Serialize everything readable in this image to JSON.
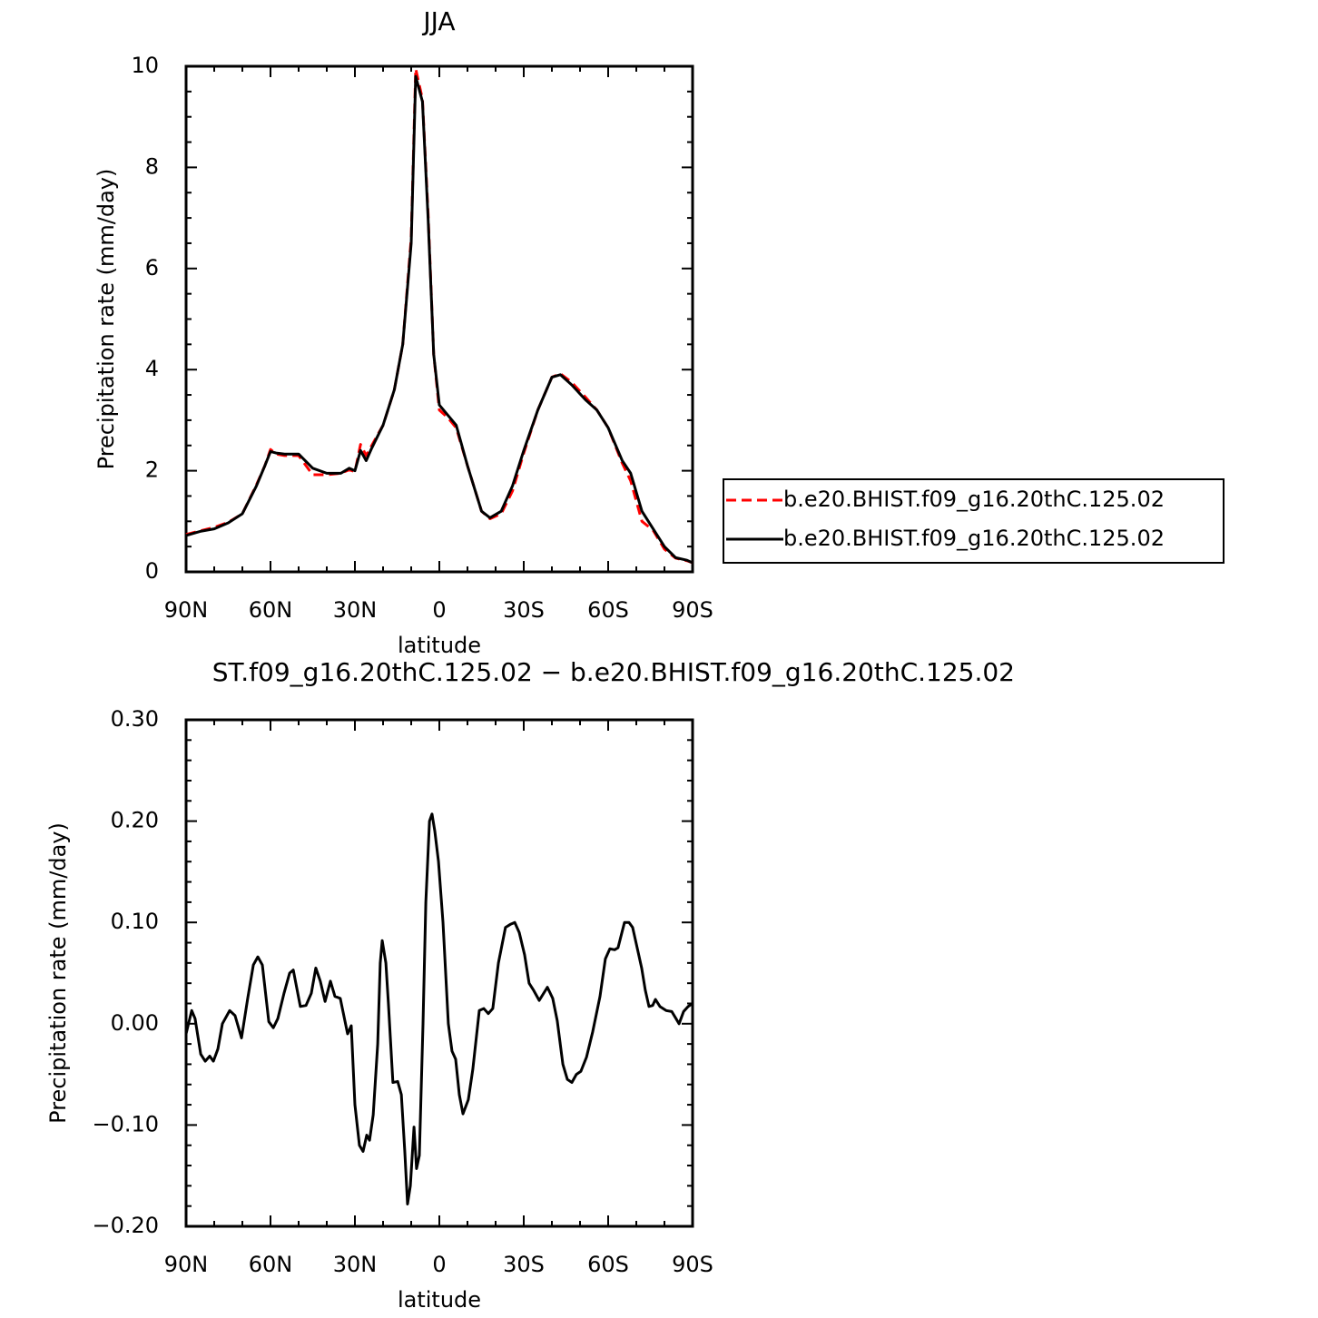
{
  "chart_data": [
    {
      "type": "line",
      "title": "JJA",
      "xlabel": "latitude",
      "ylabel": "Precipitation rate (mm/day)",
      "xlim": [
        90,
        -90
      ],
      "ylim": [
        0,
        10
      ],
      "xticks": [
        {
          "value": 90,
          "label": "90N"
        },
        {
          "value": 60,
          "label": "60N"
        },
        {
          "value": 30,
          "label": "30N"
        },
        0,
        {
          "value": -30,
          "label": "30S"
        },
        {
          "value": -60,
          "label": "60S"
        },
        {
          "value": -90,
          "label": "90S"
        }
      ],
      "yticks": [
        0,
        2,
        4,
        6,
        8,
        10
      ],
      "legend": "right",
      "x": [
        90,
        85,
        80,
        75,
        70,
        65,
        62,
        60,
        58,
        55,
        50,
        45,
        40,
        35,
        32,
        30,
        28,
        26,
        24,
        20,
        16,
        13,
        10,
        8.4,
        6,
        4,
        2,
        0,
        -3,
        -6,
        -10,
        -15,
        -18,
        -22,
        -26,
        -30,
        -35,
        -40,
        -43,
        -47,
        -52,
        -56,
        -60,
        -65,
        -68,
        -72,
        -76,
        -80,
        -84,
        -88,
        -90
      ],
      "series": [
        {
          "name": "b.e20.BHIST.f09_g16.20thC.125.02",
          "color": "#ff0000",
          "linestyle": "dashed",
          "values": [
            0.74,
            0.81,
            0.88,
            0.98,
            1.15,
            1.72,
            2.1,
            2.42,
            2.33,
            2.3,
            2.3,
            1.92,
            1.92,
            1.95,
            2.02,
            1.98,
            2.52,
            2.3,
            2.5,
            2.9,
            3.6,
            4.5,
            6.6,
            9.95,
            9.35,
            7.1,
            4.3,
            3.2,
            3.05,
            2.85,
            2.1,
            1.2,
            1.05,
            1.15,
            1.6,
            2.35,
            3.2,
            3.85,
            3.92,
            3.75,
            3.45,
            3.2,
            2.85,
            2.15,
            1.8,
            1.0,
            0.82,
            0.45,
            0.27,
            0.22,
            0.18
          ]
        },
        {
          "name": "b.e20.BHIST.f09_g16.20thC.125.02",
          "color": "#000000",
          "linestyle": "solid",
          "values": [
            0.72,
            0.8,
            0.85,
            0.97,
            1.15,
            1.7,
            2.1,
            2.38,
            2.35,
            2.33,
            2.33,
            2.05,
            1.95,
            1.95,
            2.05,
            2.0,
            2.4,
            2.2,
            2.45,
            2.9,
            3.6,
            4.5,
            6.5,
            9.8,
            9.3,
            7.0,
            4.3,
            3.3,
            3.1,
            2.9,
            2.1,
            1.2,
            1.07,
            1.2,
            1.7,
            2.4,
            3.2,
            3.85,
            3.9,
            3.7,
            3.4,
            3.2,
            2.85,
            2.2,
            1.95,
            1.2,
            0.85,
            0.5,
            0.28,
            0.23,
            0.18
          ]
        }
      ]
    },
    {
      "type": "line",
      "title": "ST.f09_g16.20thC.125.02 − b.e20.BHIST.f09_g16.20thC.125.02",
      "xlabel": "latitude",
      "ylabel": "Precipitation rate (mm/day)",
      "xlim": [
        90,
        -90
      ],
      "ylim": [
        -0.2,
        0.3
      ],
      "xticks": [
        {
          "value": 90,
          "label": "90N"
        },
        {
          "value": 60,
          "label": "60N"
        },
        {
          "value": 30,
          "label": "30N"
        },
        0,
        {
          "value": -30,
          "label": "30S"
        },
        {
          "value": -60,
          "label": "60S"
        },
        {
          "value": -90,
          "label": "90S"
        }
      ],
      "yticks": [
        {
          "value": -0.2,
          "label": "−0.20"
        },
        {
          "value": -0.1,
          "label": "−0.10"
        },
        {
          "value": 0,
          "label": "0.00"
        },
        {
          "value": 0.1,
          "label": "0.10"
        },
        {
          "value": 0.2,
          "label": "0.20"
        },
        {
          "value": 0.3,
          "label": "0.30"
        }
      ],
      "color": "#000000",
      "x": [
        90,
        88,
        86.8,
        84.8,
        83.2,
        81.6,
        80.3,
        78.7,
        77.1,
        74.5,
        72.6,
        70.3,
        68.1,
        66.1,
        64.5,
        62.9,
        60.6,
        59,
        57.4,
        55.2,
        53.2,
        51.9,
        49.4,
        47.4,
        45.5,
        43.9,
        42.3,
        40.6,
        38.7,
        37.1,
        35.2,
        32.6,
        31.3,
        30,
        28.4,
        27.1,
        25.8,
        24.8,
        23.5,
        21.9,
        21,
        20.3,
        19,
        18.1,
        16.5,
        14.8,
        13.5,
        12.3,
        11.3,
        10.3,
        9,
        8.1,
        7.1,
        5.8,
        4.8,
        3.5,
        2.6,
        1.6,
        0.3,
        -1.3,
        -3.2,
        -4.5,
        -5.8,
        -7.1,
        -8.4,
        -10.3,
        -11.9,
        -14.2,
        -15.8,
        -17.4,
        -19,
        -21,
        -23.5,
        -25.2,
        -26.8,
        -28.4,
        -30.3,
        -31.9,
        -33.5,
        -35.5,
        -38.4,
        -40.3,
        -41.9,
        -43.9,
        -45.5,
        -47.1,
        -48.7,
        -50.3,
        -52.3,
        -54.5,
        -57.1,
        -59,
        -60.6,
        -62.3,
        -63.5,
        -65.8,
        -67.4,
        -68.7,
        -70.3,
        -71.9,
        -73.2,
        -74.5,
        -75.8,
        -76.8,
        -78.4,
        -80.6,
        -82.6,
        -85.2,
        -86.8,
        -88.4,
        -90
      ],
      "values": [
        -0.01,
        0.013,
        0.005,
        -0.03,
        -0.037,
        -0.032,
        -0.037,
        -0.025,
        0.0,
        0.013,
        0.008,
        -0.014,
        0.025,
        0.058,
        0.066,
        0.058,
        0.002,
        -0.004,
        0.005,
        0.03,
        0.05,
        0.053,
        0.017,
        0.018,
        0.03,
        0.055,
        0.042,
        0.022,
        0.042,
        0.027,
        0.025,
        -0.01,
        -0.002,
        -0.08,
        -0.12,
        -0.126,
        -0.11,
        -0.115,
        -0.09,
        -0.02,
        0.06,
        0.082,
        0.06,
        0.02,
        -0.058,
        -0.057,
        -0.07,
        -0.125,
        -0.178,
        -0.16,
        -0.102,
        -0.143,
        -0.13,
        0.0,
        0.12,
        0.2,
        0.207,
        0.19,
        0.16,
        0.1,
        0.0,
        -0.027,
        -0.035,
        -0.07,
        -0.089,
        -0.075,
        -0.045,
        0.013,
        0.015,
        0.01,
        0.015,
        0.06,
        0.095,
        0.098,
        0.1,
        0.09,
        0.068,
        0.04,
        0.033,
        0.023,
        0.036,
        0.025,
        0.003,
        -0.04,
        -0.055,
        -0.058,
        -0.05,
        -0.047,
        -0.033,
        -0.008,
        0.027,
        0.064,
        0.074,
        0.073,
        0.075,
        0.1,
        0.1,
        0.095,
        0.075,
        0.055,
        0.033,
        0.017,
        0.018,
        0.024,
        0.017,
        0.013,
        0.012,
        0.0,
        0.012,
        0.017,
        0.02
      ]
    }
  ]
}
